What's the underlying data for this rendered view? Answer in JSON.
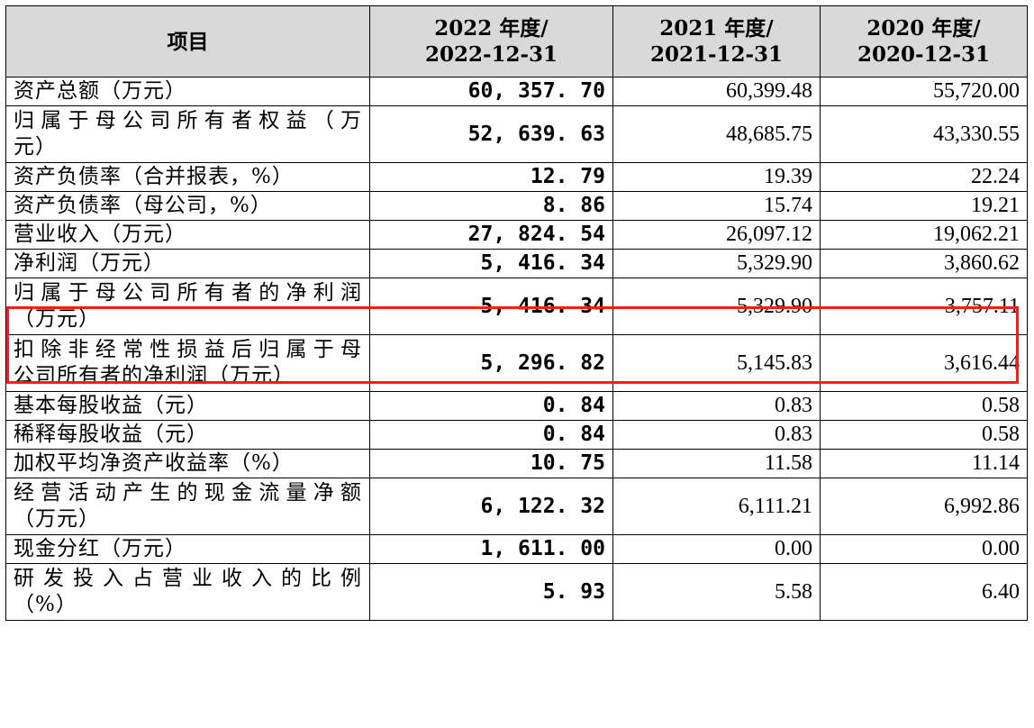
{
  "header": {
    "item": "项目",
    "col2022_line1": "2022 年度/",
    "col2022_line2": "2022-12-31",
    "col2021_line1": "2021 年度/",
    "col2021_line2": "2021-12-31",
    "col2020_line1": "2020 年度/",
    "col2020_line2": "2020-12-31"
  },
  "rows": [
    {
      "item": "资产总额（万元）",
      "v2022": "60, 357. 70",
      "v2021": "60,399.48",
      "v2020": "55,720.00"
    },
    {
      "item_l1": "归属于母公司所有者权益（万",
      "item_l2": "元）",
      "v2022": "52, 639. 63",
      "v2021": "48,685.75",
      "v2020": "43,330.55"
    },
    {
      "item": "资产负债率（合并报表，%）",
      "v2022": "12. 79",
      "v2021": "19.39",
      "v2020": "22.24"
    },
    {
      "item": "资产负债率（母公司，%）",
      "v2022": "8. 86",
      "v2021": "15.74",
      "v2020": "19.21"
    },
    {
      "item": "营业收入（万元）",
      "v2022": "27, 824. 54",
      "v2021": "26,097.12",
      "v2020": "19,062.21"
    },
    {
      "item": "净利润（万元）",
      "v2022": "5, 416. 34",
      "v2021": "5,329.90",
      "v2020": "3,860.62"
    },
    {
      "item_l1": "归属于母公司所有者的净利润",
      "item_l2": "（万元）",
      "v2022": "5, 416. 34",
      "v2021": "5,329.90",
      "v2020": "3,757.11"
    },
    {
      "item_l1": "扣除非经常性损益后归属于母",
      "item_l2": "公司所有者的净利润（万元）",
      "v2022": "5, 296. 82",
      "v2021": "5,145.83",
      "v2020": "3,616.44"
    },
    {
      "item": "基本每股收益（元）",
      "v2022": "0. 84",
      "v2021": "0.83",
      "v2020": "0.58"
    },
    {
      "item": "稀释每股收益（元）",
      "v2022": "0. 84",
      "v2021": "0.83",
      "v2020": "0.58"
    },
    {
      "item": "加权平均净资产收益率（%）",
      "v2022": "10. 75",
      "v2021": "11.58",
      "v2020": "11.14"
    },
    {
      "item_l1": "经营活动产生的现金流量净额",
      "item_l2": "（万元）",
      "v2022": "6, 122. 32",
      "v2021": "6,111.21",
      "v2020": "6,992.86"
    },
    {
      "item": "现金分红（万元）",
      "v2022": "1, 611. 00",
      "v2021": "0.00",
      "v2020": "0.00"
    },
    {
      "item_l1": "研发投入占营业收入的比例",
      "item_l2": "（%）",
      "v2022": "5. 93",
      "v2021": "5.58",
      "v2020": "6.40"
    }
  ],
  "colors": {
    "header_bg": "#d9d9d9",
    "highlight_border": "#ff1a1a",
    "text": "#000000"
  }
}
